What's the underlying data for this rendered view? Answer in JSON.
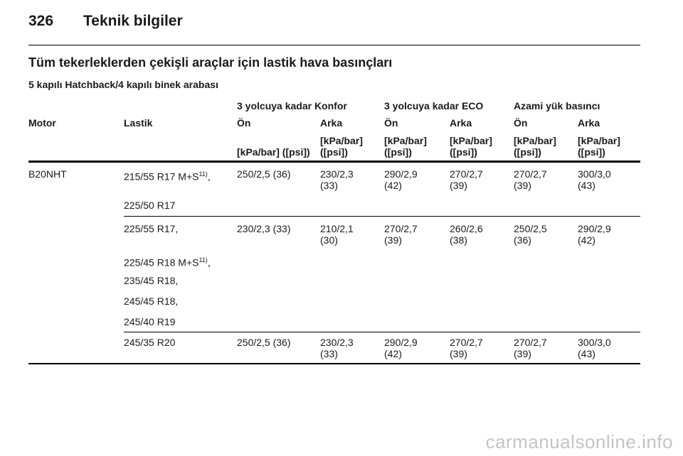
{
  "header": {
    "page_number": "326",
    "chapter": "Teknik bilgiler"
  },
  "section_title": "Tüm tekerleklerden çekişli araçlar için lastik hava basınçları",
  "subtitle": "5 kapılı Hatchback/4 kapılı binek arabası",
  "table": {
    "groups": [
      "3 yolcuya kadar Konfor",
      "3 yolcuya kadar ECO",
      "Azami yük basıncı"
    ],
    "columns": [
      "Motor",
      "Lastik",
      "Ön",
      "Arka",
      "Ön",
      "Arka",
      "Ön",
      "Arka"
    ],
    "units": {
      "u1": "[kPa/bar] ([psi])",
      "u2a": "[kPa/bar]",
      "u2b": "([psi])",
      "u3a": "[kPa/bar]",
      "u3b": "([psi])",
      "u4a": "[kPa/bar]",
      "u4b": "([psi])",
      "u5a": "[kPa/bar]",
      "u5b": "([psi])",
      "u6a": "[kPa/bar]",
      "u6b": "([psi])"
    },
    "rows": [
      {
        "motor": "B20NHT",
        "tires": [
          "215/55 R17 M+S",
          "225/50 R17"
        ],
        "tire_footnote": "11)",
        "tire_suffix": ",",
        "v1": "250/2,5 (36)",
        "v2a": "230/2,3",
        "v2b": "(33)",
        "v3a": "290/2,9",
        "v3b": "(42)",
        "v4a": "270/2,7",
        "v4b": "(39)",
        "v5a": "270/2,7",
        "v5b": "(39)",
        "v6a": "300/3,0",
        "v6b": "(43)"
      },
      {
        "tires": [
          "225/55 R17,",
          "225/45 R18 M+S",
          "235/45 R18,",
          "245/45 R18,",
          "245/40 R19"
        ],
        "tire_footnote": "11)",
        "tire_suffix": ",",
        "v1": "230/2,3 (33)",
        "v2a": "210/2,1",
        "v2b": "(30)",
        "v3a": "270/2,7",
        "v3b": "(39)",
        "v4a": "260/2,6",
        "v4b": "(38)",
        "v5a": "250/2,5",
        "v5b": "(36)",
        "v6a": "290/2,9",
        "v6b": "(42)"
      },
      {
        "tires": [
          "245/35 R20"
        ],
        "v1": "250/2,5 (36)",
        "v2a": "230/2,3",
        "v2b": "(33)",
        "v3a": "290/2,9",
        "v3b": "(42)",
        "v4a": "270/2,7",
        "v4b": "(39)",
        "v5a": "270/2,7",
        "v5b": "(39)",
        "v6a": "300/3,0",
        "v6b": "(43)"
      }
    ]
  },
  "watermark": "carmanualsonline.info"
}
